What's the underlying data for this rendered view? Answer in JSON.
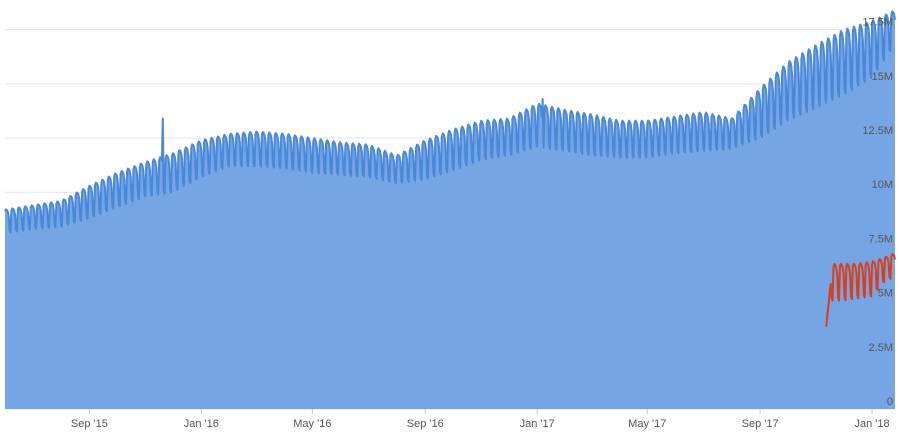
{
  "chart_data": {
    "type": "area",
    "title": "",
    "xlabel": "",
    "ylabel": "",
    "ylim": [
      0,
      18500000
    ],
    "grid": true,
    "y_axis_side": "right",
    "y_ticks": [
      {
        "value": 0,
        "label": "0"
      },
      {
        "value": 2500000,
        "label": "2.5M"
      },
      {
        "value": 5000000,
        "label": "5M"
      },
      {
        "value": 7500000,
        "label": "7.5M"
      },
      {
        "value": 10000000,
        "label": "10M"
      },
      {
        "value": 12500000,
        "label": "12.5M"
      },
      {
        "value": 15000000,
        "label": "15M"
      },
      {
        "value": 17500000,
        "label": "17.5M"
      }
    ],
    "x_range": [
      "2015-06-01",
      "2018-01-26"
    ],
    "x_ticks": [
      {
        "date": "2015-09-01",
        "label": "Sep '15"
      },
      {
        "date": "2016-01-01",
        "label": "Jan '16"
      },
      {
        "date": "2016-05-01",
        "label": "May '16"
      },
      {
        "date": "2016-09-01",
        "label": "Sep '16"
      },
      {
        "date": "2017-01-01",
        "label": "Jan '17"
      },
      {
        "date": "2017-05-01",
        "label": "May '17"
      },
      {
        "date": "2017-09-01",
        "label": "Sep '17"
      },
      {
        "date": "2018-01-01",
        "label": "Jan '18"
      }
    ],
    "series": [
      {
        "type": "area",
        "color": "#4a88da",
        "fill_color": "#76a5e5",
        "weekly_pattern": "peak on weekdays, trough on weekends",
        "spikes": [
          {
            "date": "2015-11-20",
            "value": 13400000
          },
          {
            "date": "2017-01-07",
            "value": 14300000
          }
        ],
        "points": [
          {
            "date": "2015-06-01",
            "low": 8100000,
            "high": 9200000
          },
          {
            "date": "2015-07-01",
            "low": 8300000,
            "high": 9400000
          },
          {
            "date": "2015-08-01",
            "low": 8400000,
            "high": 9600000
          },
          {
            "date": "2015-09-01",
            "low": 8800000,
            "high": 10300000
          },
          {
            "date": "2015-10-01",
            "low": 9300000,
            "high": 10900000
          },
          {
            "date": "2015-11-01",
            "low": 9800000,
            "high": 11400000
          },
          {
            "date": "2015-12-01",
            "low": 10000000,
            "high": 11800000
          },
          {
            "date": "2016-01-01",
            "low": 10700000,
            "high": 12400000
          },
          {
            "date": "2016-02-01",
            "low": 11200000,
            "high": 12700000
          },
          {
            "date": "2016-03-01",
            "low": 11200000,
            "high": 12800000
          },
          {
            "date": "2016-04-01",
            "low": 11100000,
            "high": 12700000
          },
          {
            "date": "2016-05-01",
            "low": 10900000,
            "high": 12500000
          },
          {
            "date": "2016-06-01",
            "low": 10800000,
            "high": 12300000
          },
          {
            "date": "2016-07-01",
            "low": 10700000,
            "high": 12200000
          },
          {
            "date": "2016-08-01",
            "low": 10400000,
            "high": 11700000
          },
          {
            "date": "2016-09-01",
            "low": 10600000,
            "high": 12400000
          },
          {
            "date": "2016-10-01",
            "low": 11000000,
            "high": 12900000
          },
          {
            "date": "2016-11-01",
            "low": 11500000,
            "high": 13300000
          },
          {
            "date": "2016-12-01",
            "low": 11700000,
            "high": 13400000
          },
          {
            "date": "2017-01-01",
            "low": 12100000,
            "high": 14100000
          },
          {
            "date": "2017-02-01",
            "low": 11900000,
            "high": 13800000
          },
          {
            "date": "2017-03-01",
            "low": 11700000,
            "high": 13600000
          },
          {
            "date": "2017-04-01",
            "low": 11600000,
            "high": 13300000
          },
          {
            "date": "2017-05-01",
            "low": 11600000,
            "high": 13300000
          },
          {
            "date": "2017-06-01",
            "low": 11800000,
            "high": 13500000
          },
          {
            "date": "2017-07-01",
            "low": 11900000,
            "high": 13700000
          },
          {
            "date": "2017-08-01",
            "low": 12000000,
            "high": 13400000
          },
          {
            "date": "2017-09-01",
            "low": 12500000,
            "high": 14800000
          },
          {
            "date": "2017-10-01",
            "low": 13300000,
            "high": 16000000
          },
          {
            "date": "2017-11-01",
            "low": 13900000,
            "high": 16800000
          },
          {
            "date": "2017-12-01",
            "low": 14500000,
            "high": 17500000
          },
          {
            "date": "2018-01-01",
            "low": 15300000,
            "high": 17900000
          },
          {
            "date": "2018-01-26",
            "low": 16800000,
            "high": 18400000
          }
        ]
      },
      {
        "type": "line",
        "color": "#d6401e",
        "points": [
          {
            "date": "2017-11-12",
            "low": 3800000,
            "high": 3800000
          },
          {
            "date": "2017-11-15",
            "low": 4600000,
            "high": 5000000
          },
          {
            "date": "2017-11-18",
            "low": 5000000,
            "high": 6700000
          },
          {
            "date": "2017-12-01",
            "low": 5000000,
            "high": 6700000
          },
          {
            "date": "2017-12-15",
            "low": 5100000,
            "high": 6700000
          },
          {
            "date": "2018-01-01",
            "low": 5200000,
            "high": 6800000
          },
          {
            "date": "2018-01-15",
            "low": 5900000,
            "high": 7000000
          },
          {
            "date": "2018-01-26",
            "low": 6100000,
            "high": 7200000
          }
        ]
      }
    ]
  }
}
